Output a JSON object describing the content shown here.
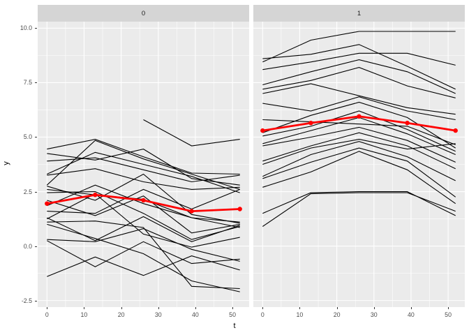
{
  "figure": {
    "xlabel": "t",
    "ylabel": "y"
  },
  "colors": {
    "panel_background": "#EBEBEB",
    "strip_background": "#D5D5D5",
    "grid": "#FFFFFF",
    "spaghetti_line": "#000000",
    "mean_line": "#FF0000",
    "axis_text": "#4D4D4D"
  },
  "chart_data": {
    "type": "line",
    "title": "",
    "xlabel": "t",
    "ylabel": "y",
    "x": [
      0,
      13,
      26,
      39,
      52
    ],
    "axes": {
      "x_ticks": [
        0,
        10,
        20,
        30,
        40,
        50
      ],
      "x_tick_labels": [
        "0",
        "10",
        "20",
        "30",
        "40",
        "50"
      ],
      "y_ticks": [
        10.0,
        7.5,
        5.0,
        2.5,
        0.0,
        -2.5
      ],
      "y_tick_labels": [
        "10.0",
        "7.5",
        "5.0",
        "2.5",
        "0.0",
        "-2.5"
      ],
      "xlim": [
        -2.5,
        54.5
      ],
      "ylim": [
        -2.8,
        10.3
      ],
      "grid": true,
      "x_minor_step": 5,
      "y_minor_step": 1.25
    },
    "legend": "none",
    "facets": [
      {
        "label": "0",
        "series": [
          {
            "name": "line",
            "values": [
              4.45,
              4.9,
              4.1,
              3.35,
              3.3
            ]
          },
          {
            "name": "line",
            "values": [
              4.25,
              3.95,
              4.45,
              3.1,
              2.8
            ]
          },
          {
            "name": "line",
            "values": [
              3.9,
              4.05,
              3.5,
              2.95,
              3.25
            ]
          },
          {
            "name": "line",
            "values": [
              3.3,
              4.3,
              3.75,
              3.2,
              2.45
            ]
          },
          {
            "name": "line",
            "values": [
              3.25,
              3.55,
              2.95,
              2.6,
              2.7
            ]
          },
          {
            "name": "line",
            "values": [
              2.8,
              4.85,
              4.0,
              3.3,
              2.6
            ]
          },
          {
            "name": "line",
            "values": [
              2.75,
              2.1,
              3.3,
              1.45,
              1.05
            ]
          },
          {
            "name": "line",
            "values": [
              2.6,
              2.35,
              2.15,
              1.3,
              0.85
            ]
          },
          {
            "name": "line",
            "values": [
              2.45,
              2.5,
              1.5,
              0.3,
              0.9
            ]
          },
          {
            "name": "line",
            "values": [
              2.1,
              1.4,
              2.3,
              0.6,
              1.0
            ]
          },
          {
            "name": "line",
            "values": [
              1.85,
              2.8,
              1.95,
              1.3,
              1.1
            ]
          },
          {
            "name": "line",
            "values": [
              1.6,
              1.5,
              2.6,
              1.7,
              2.6
            ]
          },
          {
            "name": "line",
            "values": [
              1.3,
              0.25,
              1.35,
              0.2,
              0.95
            ]
          },
          {
            "name": "line",
            "values": [
              1.25,
              2.4,
              0.55,
              -0.05,
              0.4
            ]
          },
          {
            "name": "line",
            "values": [
              1.1,
              1.15,
              0.85,
              -1.85,
              -1.95
            ]
          },
          {
            "name": "line",
            "values": [
              1.0,
              0.35,
              -0.35,
              -1.6,
              -2.1
            ]
          },
          {
            "name": "line",
            "values": [
              0.3,
              0.2,
              0.8,
              -0.15,
              -0.7
            ]
          },
          {
            "name": "line",
            "values": [
              0.25,
              -0.95,
              0.2,
              -0.8,
              -0.6
            ]
          },
          {
            "name": "line",
            "values": [
              -1.4,
              -0.5,
              -1.35,
              -0.45,
              -1.1
            ]
          },
          {
            "name": "line",
            "values": [
              null,
              null,
              5.8,
              4.6,
              4.9
            ]
          }
        ],
        "mean_series": {
          "name": "mean",
          "values": [
            1.95,
            2.35,
            2.1,
            1.6,
            1.7
          ]
        }
      },
      {
        "label": "1",
        "series": [
          {
            "name": "line",
            "values": [
              8.45,
              9.45,
              9.85,
              9.85,
              9.85
            ]
          },
          {
            "name": "line",
            "values": [
              8.6,
              8.8,
              9.25,
              8.25,
              7.2
            ]
          },
          {
            "name": "line",
            "values": [
              8.1,
              8.45,
              8.85,
              8.85,
              8.3
            ]
          },
          {
            "name": "line",
            "values": [
              7.4,
              8.0,
              8.55,
              8.0,
              7.0
            ]
          },
          {
            "name": "line",
            "values": [
              7.2,
              7.6,
              8.2,
              7.35,
              6.8
            ]
          },
          {
            "name": "line",
            "values": [
              7.0,
              7.45,
              6.9,
              6.35,
              6.05
            ]
          },
          {
            "name": "line",
            "values": [
              6.55,
              6.2,
              6.85,
              6.2,
              5.8
            ]
          },
          {
            "name": "line",
            "values": [
              5.8,
              5.7,
              5.6,
              5.5,
              4.65
            ]
          },
          {
            "name": "line",
            "values": [
              5.2,
              6.0,
              6.6,
              5.9,
              4.5
            ]
          },
          {
            "name": "line",
            "values": [
              5.05,
              5.5,
              6.2,
              5.35,
              4.35
            ]
          },
          {
            "name": "line",
            "values": [
              4.7,
              5.3,
              5.9,
              5.15,
              4.2
            ]
          },
          {
            "name": "line",
            "values": [
              4.6,
              5.0,
              5.45,
              4.85,
              3.85
            ]
          },
          {
            "name": "line",
            "values": [
              3.9,
              4.6,
              5.2,
              4.6,
              3.55
            ]
          },
          {
            "name": "line",
            "values": [
              3.75,
              4.5,
              4.9,
              4.45,
              4.7
            ]
          },
          {
            "name": "line",
            "values": [
              3.2,
              4.2,
              4.8,
              4.1,
              3.0
            ]
          },
          {
            "name": "line",
            "values": [
              3.1,
              3.85,
              4.5,
              3.9,
              2.25
            ]
          },
          {
            "name": "line",
            "values": [
              2.7,
              3.4,
              4.35,
              3.5,
              1.95
            ]
          },
          {
            "name": "line",
            "values": [
              1.5,
              2.45,
              2.5,
              2.5,
              1.4
            ]
          },
          {
            "name": "line",
            "values": [
              0.9,
              2.4,
              2.45,
              2.45,
              1.6
            ]
          }
        ],
        "mean_series": {
          "name": "mean",
          "values": [
            5.3,
            5.65,
            5.95,
            5.65,
            5.3
          ]
        }
      }
    ]
  }
}
